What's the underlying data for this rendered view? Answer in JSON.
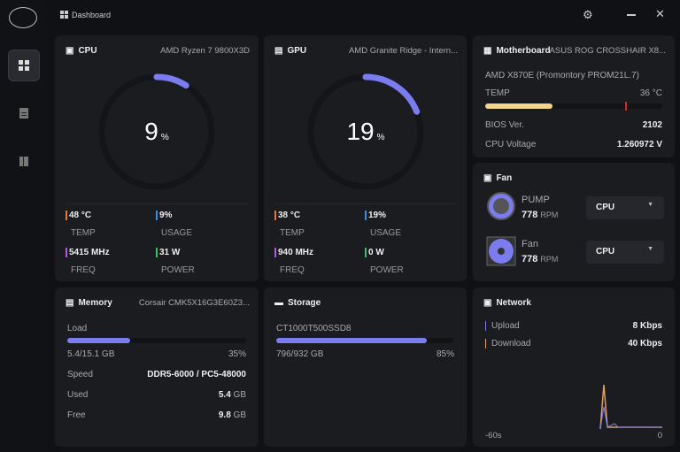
{
  "title": "Dashboard",
  "cpu": {
    "label": "CPU",
    "model": "AMD Ryzen 7 9800X3D",
    "usage_pct": 9,
    "pct_unit": "%",
    "temp": "48 °C",
    "temp_label": "TEMP",
    "usage": "9%",
    "usage_label": "USAGE",
    "freq": "5415 MHz",
    "freq_label": "FREQ",
    "power": "31 W",
    "power_label": "POWER"
  },
  "gpu": {
    "label": "GPU",
    "model": "AMD Granite Ridge - Intern...",
    "usage_pct": 19,
    "pct_unit": "%",
    "temp": "38 °C",
    "temp_label": "TEMP",
    "usage": "19%",
    "usage_label": "USAGE",
    "freq": "940 MHz",
    "freq_label": "FREQ",
    "power": "0 W",
    "power_label": "POWER"
  },
  "motherboard": {
    "label": "Motherboard",
    "model": "ASUS ROG CROSSHAIR X8...",
    "chipset": "AMD X870E (Promontory PROM21L.7)",
    "temp_label": "TEMP",
    "temp": "36 °C",
    "temp_fill_pct": 38,
    "bios_label": "BIOS Ver.",
    "bios": "2102",
    "voltage_label": "CPU Voltage",
    "voltage": "1.260972 V"
  },
  "fan": {
    "label": "Fan",
    "items": [
      {
        "name": "PUMP",
        "rpm": "778",
        "unit": "RPM",
        "source": "CPU"
      },
      {
        "name": "Fan",
        "rpm": "778",
        "unit": "RPM",
        "source": "CPU"
      }
    ]
  },
  "memory": {
    "label": "Memory",
    "model": "Corsair CMK5X16G3E60Z3...",
    "load_label": "Load",
    "used_total": "5.4/15.1 GB",
    "load_pct_text": "35%",
    "load_pct": 35,
    "speed_label": "Speed",
    "speed": "DDR5-6000 / PC5-48000",
    "used_label": "Used",
    "used": "5.4",
    "used_unit": "GB",
    "free_label": "Free",
    "free": "9.8",
    "free_unit": "GB"
  },
  "storage": {
    "label": "Storage",
    "drive": "CT1000T500SSD8",
    "used_total": "796/932 GB",
    "pct_text": "85%",
    "pct": 85
  },
  "network": {
    "label": "Network",
    "upload_label": "Upload",
    "upload": "8 Kbps",
    "download_label": "Download",
    "download": "40 Kbps",
    "x_start": "-60s",
    "x_end": "0"
  },
  "colors": {
    "accent": "#7b7cf0",
    "temp": "#e07a3a",
    "usage": "#3a8ee0",
    "freq": "#b05ce0",
    "power": "#3ac06a"
  }
}
